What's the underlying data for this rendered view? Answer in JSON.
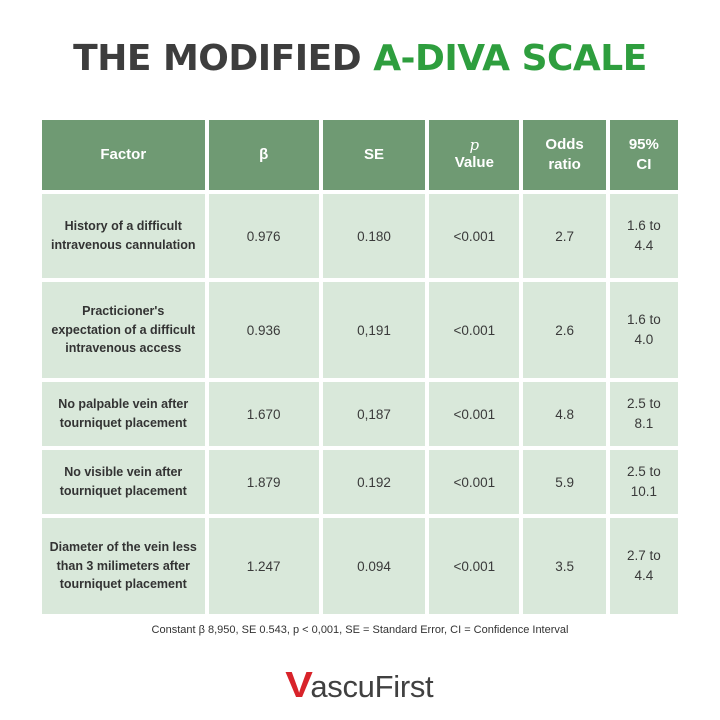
{
  "title": {
    "part1": "THE MODIFIED",
    "part2": "A-DIVA SCALE"
  },
  "colors": {
    "accent": "#2e9e3e",
    "header_bg": "#6f9a73",
    "cell_bg": "#d9e8da",
    "logo_red": "#d8232a"
  },
  "table": {
    "headers": {
      "factor": "Factor",
      "beta": "β",
      "se": "SE",
      "p_symbol": "p",
      "p_value": "Value",
      "odds_line1": "Odds",
      "odds_line2": "ratio",
      "ci_line1": "95%",
      "ci_line2": "CI"
    },
    "rows": [
      {
        "factor": "History of a difficult intravenous cannulation",
        "beta": "0.976",
        "se": "0.180",
        "p": "<0.001",
        "odds": "2.7",
        "ci_line1": "1.6 to",
        "ci_line2": "4.4"
      },
      {
        "factor": "Practicioner's expectation of a difficult intravenous access",
        "beta": "0.936",
        "se": "0,191",
        "p": "<0.001",
        "odds": "2.6",
        "ci_line1": "1.6 to",
        "ci_line2": "4.0"
      },
      {
        "factor": "No palpable vein after tourniquet placement",
        "beta": "1.670",
        "se": "0,187",
        "p": "<0.001",
        "odds": "4.8",
        "ci_line1": "2.5 to",
        "ci_line2": "8.1"
      },
      {
        "factor": "No visible vein after tourniquet placement",
        "beta": "1.879",
        "se": "0.192",
        "p": "<0.001",
        "odds": "5.9",
        "ci_line1": "2.5 to",
        "ci_line2": "10.1"
      },
      {
        "factor": "Diameter of the vein less than 3 milimeters after tourniquet placement",
        "beta": "1.247",
        "se": "0.094",
        "p": "<0.001",
        "odds": "3.5",
        "ci_line1": "2.7 to",
        "ci_line2": "4.4"
      }
    ]
  },
  "footnote": "Constant β 8,950, SE 0.543, p < 0,001, SE = Standard Error, CI = Confidence Interval",
  "logo": {
    "mark": "V",
    "text": "ascuFirst"
  }
}
